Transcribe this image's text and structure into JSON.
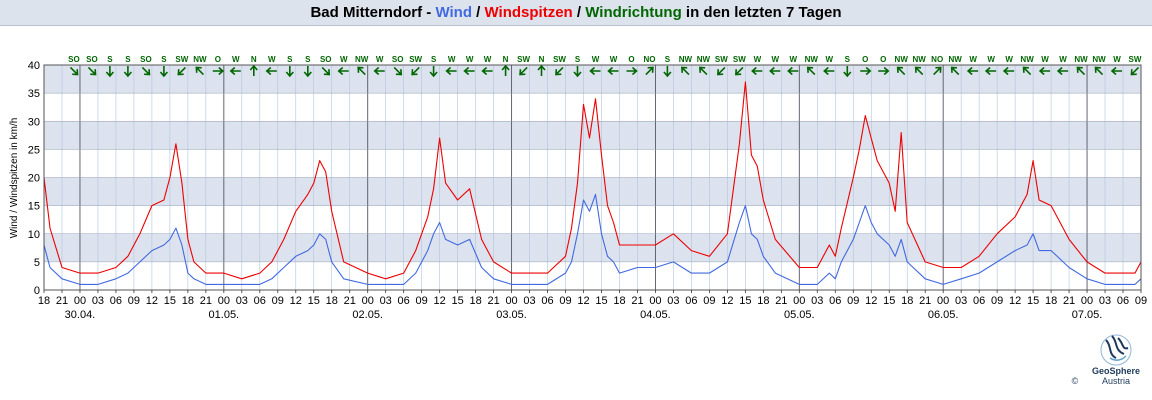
{
  "title": {
    "station": "Bad Mitterndorf",
    "sep1": " - ",
    "wind": "Wind",
    "sep2": " / ",
    "gusts": "Windspitzen",
    "sep3": " / ",
    "direction": "Windrichtung",
    "suffix": " in den letzten 7 Tagen"
  },
  "colors": {
    "wind": "#4169e1",
    "gusts": "#ee0000",
    "direction": "#006600",
    "band": "#dde3ee",
    "grid_v": "#b0c4de",
    "grid_h": "#8fa0b8"
  },
  "logo": {
    "line1": "GeoSphere",
    "line2": "Austria",
    "copyright": "©"
  },
  "chart_data": {
    "type": "line",
    "ylabel": "Wind / Windspitzen in km/h",
    "ylim": [
      0,
      40
    ],
    "y_ticks": [
      "0",
      "5",
      "10",
      "15",
      "20",
      "25",
      "30",
      "35",
      "40"
    ],
    "x_start": "2024-04-29T18:00",
    "x_end": "2024-05-07T09:00",
    "x_tick_labels": [
      "18",
      "21",
      "00",
      "03",
      "06",
      "09",
      "12",
      "15",
      "18",
      "21",
      "00",
      "03",
      "06",
      "09",
      "12",
      "15",
      "18",
      "21",
      "00",
      "03",
      "06",
      "09",
      "12",
      "15",
      "18",
      "21",
      "00",
      "03",
      "06",
      "09",
      "12",
      "15",
      "18",
      "21",
      "00",
      "03",
      "06",
      "09",
      "12",
      "15",
      "18",
      "21",
      "00",
      "03",
      "06",
      "09",
      "12",
      "15",
      "18",
      "21",
      "00",
      "03",
      "06",
      "09",
      "12",
      "15",
      "18",
      "21",
      "00",
      "03",
      "06",
      "09"
    ],
    "date_labels": [
      {
        "label": "30.04.",
        "at": "2024-04-30T00:00"
      },
      {
        "label": "01.05.",
        "at": "2024-05-01T00:00"
      },
      {
        "label": "02.05.",
        "at": "2024-05-02T00:00"
      },
      {
        "label": "03.05.",
        "at": "2024-05-03T00:00"
      },
      {
        "label": "04.05.",
        "at": "2024-05-04T00:00"
      },
      {
        "label": "05.05.",
        "at": "2024-05-05T00:00"
      },
      {
        "label": "06.05.",
        "at": "2024-05-06T00:00"
      },
      {
        "label": "07.05.",
        "at": "2024-05-07T00:00"
      }
    ],
    "direction_labels": [
      "SO",
      "SO",
      "S",
      "S",
      "SO",
      "S",
      "SW",
      "NW",
      "O",
      "W",
      "N",
      "W",
      "S",
      "S",
      "SO",
      "W",
      "NW",
      "W",
      "SO",
      "SW",
      "S",
      "W",
      "W",
      "W",
      "N",
      "SW",
      "N",
      "SW",
      "S",
      "W",
      "W",
      "O",
      "NO",
      "S",
      "NW",
      "NW",
      "SW",
      "SW",
      "W",
      "W",
      "W",
      "NW",
      "W",
      "S",
      "O",
      "O",
      "NW",
      "NW",
      "NO",
      "NW",
      "W",
      "W",
      "W",
      "NW",
      "W",
      "W",
      "NW",
      "NW",
      "W",
      "SW"
    ],
    "direction_degrees": [
      135,
      135,
      180,
      180,
      135,
      180,
      225,
      315,
      90,
      270,
      0,
      270,
      180,
      180,
      135,
      270,
      315,
      270,
      135,
      225,
      180,
      270,
      270,
      270,
      0,
      225,
      0,
      225,
      180,
      270,
      270,
      90,
      45,
      180,
      315,
      315,
      225,
      225,
      270,
      270,
      270,
      315,
      270,
      180,
      90,
      90,
      315,
      315,
      45,
      315,
      270,
      270,
      270,
      315,
      270,
      270,
      315,
      315,
      270,
      225
    ],
    "series": [
      {
        "name": "Windspitzen",
        "x": [
          "2024-04-29T18:00",
          "2024-04-29T19:00",
          "2024-04-29T21:00",
          "2024-04-30T00:00",
          "2024-04-30T03:00",
          "2024-04-30T06:00",
          "2024-04-30T08:00",
          "2024-04-30T10:00",
          "2024-04-30T12:00",
          "2024-04-30T14:00",
          "2024-04-30T15:00",
          "2024-04-30T16:00",
          "2024-04-30T17:00",
          "2024-04-30T18:00",
          "2024-04-30T19:00",
          "2024-04-30T21:00",
          "2024-05-01T00:00",
          "2024-05-01T03:00",
          "2024-05-01T06:00",
          "2024-05-01T08:00",
          "2024-05-01T10:00",
          "2024-05-01T12:00",
          "2024-05-01T14:00",
          "2024-05-01T15:00",
          "2024-05-01T16:00",
          "2024-05-01T17:00",
          "2024-05-01T18:00",
          "2024-05-01T20:00",
          "2024-05-02T00:00",
          "2024-05-02T03:00",
          "2024-05-02T06:00",
          "2024-05-02T08:00",
          "2024-05-02T10:00",
          "2024-05-02T11:00",
          "2024-05-02T12:00",
          "2024-05-02T13:00",
          "2024-05-02T15:00",
          "2024-05-02T17:00",
          "2024-05-02T19:00",
          "2024-05-02T21:00",
          "2024-05-03T00:00",
          "2024-05-03T03:00",
          "2024-05-03T06:00",
          "2024-05-03T09:00",
          "2024-05-03T10:00",
          "2024-05-03T11:00",
          "2024-05-03T12:00",
          "2024-05-03T13:00",
          "2024-05-03T14:00",
          "2024-05-03T15:00",
          "2024-05-03T16:00",
          "2024-05-03T17:00",
          "2024-05-03T18:00",
          "2024-05-03T21:00",
          "2024-05-04T00:00",
          "2024-05-04T03:00",
          "2024-05-04T06:00",
          "2024-05-04T09:00",
          "2024-05-04T12:00",
          "2024-05-04T14:00",
          "2024-05-04T15:00",
          "2024-05-04T16:00",
          "2024-05-04T17:00",
          "2024-05-04T18:00",
          "2024-05-04T20:00",
          "2024-05-05T00:00",
          "2024-05-05T03:00",
          "2024-05-05T05:00",
          "2024-05-05T06:00",
          "2024-05-05T07:00",
          "2024-05-05T09:00",
          "2024-05-05T10:00",
          "2024-05-05T11:00",
          "2024-05-05T12:00",
          "2024-05-05T13:00",
          "2024-05-05T15:00",
          "2024-05-05T16:00",
          "2024-05-05T17:00",
          "2024-05-05T18:00",
          "2024-05-05T21:00",
          "2024-05-06T00:00",
          "2024-05-06T03:00",
          "2024-05-06T06:00",
          "2024-05-06T09:00",
          "2024-05-06T12:00",
          "2024-05-06T14:00",
          "2024-05-06T15:00",
          "2024-05-06T16:00",
          "2024-05-06T18:00",
          "2024-05-06T21:00",
          "2024-05-07T00:00",
          "2024-05-07T03:00",
          "2024-05-07T06:00",
          "2024-05-07T08:00",
          "2024-05-07T09:00"
        ],
        "y": [
          20,
          11,
          4,
          3,
          3,
          4,
          6,
          10,
          15,
          16,
          20,
          26,
          19,
          9,
          5,
          3,
          3,
          2,
          3,
          5,
          9,
          14,
          17,
          19,
          23,
          21,
          14,
          5,
          3,
          2,
          3,
          7,
          13,
          18,
          27,
          19,
          16,
          18,
          9,
          5,
          3,
          3,
          3,
          6,
          11,
          19,
          33,
          27,
          34,
          24,
          15,
          12,
          8,
          8,
          8,
          10,
          7,
          6,
          10,
          26,
          37,
          24,
          22,
          16,
          9,
          4,
          4,
          8,
          6,
          11,
          20,
          25,
          31,
          27,
          23,
          19,
          14,
          28,
          12,
          5,
          4,
          4,
          6,
          10,
          13,
          17,
          23,
          16,
          15,
          9,
          5,
          3,
          3,
          3,
          5
        ]
      },
      {
        "name": "Wind",
        "x": [
          "2024-04-29T18:00",
          "2024-04-29T19:00",
          "2024-04-29T21:00",
          "2024-04-30T00:00",
          "2024-04-30T03:00",
          "2024-04-30T06:00",
          "2024-04-30T08:00",
          "2024-04-30T10:00",
          "2024-04-30T12:00",
          "2024-04-30T14:00",
          "2024-04-30T15:00",
          "2024-04-30T16:00",
          "2024-04-30T17:00",
          "2024-04-30T18:00",
          "2024-04-30T19:00",
          "2024-04-30T21:00",
          "2024-05-01T00:00",
          "2024-05-01T03:00",
          "2024-05-01T06:00",
          "2024-05-01T08:00",
          "2024-05-01T10:00",
          "2024-05-01T12:00",
          "2024-05-01T14:00",
          "2024-05-01T15:00",
          "2024-05-01T16:00",
          "2024-05-01T17:00",
          "2024-05-01T18:00",
          "2024-05-01T20:00",
          "2024-05-02T00:00",
          "2024-05-02T03:00",
          "2024-05-02T06:00",
          "2024-05-02T08:00",
          "2024-05-02T10:00",
          "2024-05-02T11:00",
          "2024-05-02T12:00",
          "2024-05-02T13:00",
          "2024-05-02T15:00",
          "2024-05-02T17:00",
          "2024-05-02T19:00",
          "2024-05-02T21:00",
          "2024-05-03T00:00",
          "2024-05-03T03:00",
          "2024-05-03T06:00",
          "2024-05-03T09:00",
          "2024-05-03T10:00",
          "2024-05-03T11:00",
          "2024-05-03T12:00",
          "2024-05-03T13:00",
          "2024-05-03T14:00",
          "2024-05-03T15:00",
          "2024-05-03T16:00",
          "2024-05-03T17:00",
          "2024-05-03T18:00",
          "2024-05-03T21:00",
          "2024-05-04T00:00",
          "2024-05-04T03:00",
          "2024-05-04T06:00",
          "2024-05-04T09:00",
          "2024-05-04T12:00",
          "2024-05-04T14:00",
          "2024-05-04T15:00",
          "2024-05-04T16:00",
          "2024-05-04T17:00",
          "2024-05-04T18:00",
          "2024-05-04T20:00",
          "2024-05-05T00:00",
          "2024-05-05T03:00",
          "2024-05-05T05:00",
          "2024-05-05T06:00",
          "2024-05-05T07:00",
          "2024-05-05T09:00",
          "2024-05-05T10:00",
          "2024-05-05T11:00",
          "2024-05-05T12:00",
          "2024-05-05T13:00",
          "2024-05-05T15:00",
          "2024-05-05T16:00",
          "2024-05-05T17:00",
          "2024-05-05T18:00",
          "2024-05-05T21:00",
          "2024-05-06T00:00",
          "2024-05-06T03:00",
          "2024-05-06T06:00",
          "2024-05-06T09:00",
          "2024-05-06T12:00",
          "2024-05-06T14:00",
          "2024-05-06T15:00",
          "2024-05-06T16:00",
          "2024-05-06T18:00",
          "2024-05-06T21:00",
          "2024-05-07T00:00",
          "2024-05-07T03:00",
          "2024-05-07T06:00",
          "2024-05-07T08:00",
          "2024-05-07T09:00"
        ],
        "y": [
          8,
          4,
          2,
          1,
          1,
          2,
          3,
          5,
          7,
          8,
          9,
          11,
          8,
          3,
          2,
          1,
          1,
          1,
          1,
          2,
          4,
          6,
          7,
          8,
          10,
          9,
          5,
          2,
          1,
          1,
          1,
          3,
          7,
          10,
          12,
          9,
          8,
          9,
          4,
          2,
          1,
          1,
          1,
          3,
          5,
          10,
          16,
          14,
          17,
          10,
          6,
          5,
          3,
          4,
          4,
          5,
          3,
          3,
          5,
          12,
          15,
          10,
          9,
          6,
          3,
          1,
          1,
          3,
          2,
          5,
          9,
          12,
          15,
          12,
          10,
          8,
          6,
          9,
          5,
          2,
          1,
          2,
          3,
          5,
          7,
          8,
          10,
          7,
          7,
          4,
          2,
          1,
          1,
          1,
          2
        ]
      }
    ]
  }
}
